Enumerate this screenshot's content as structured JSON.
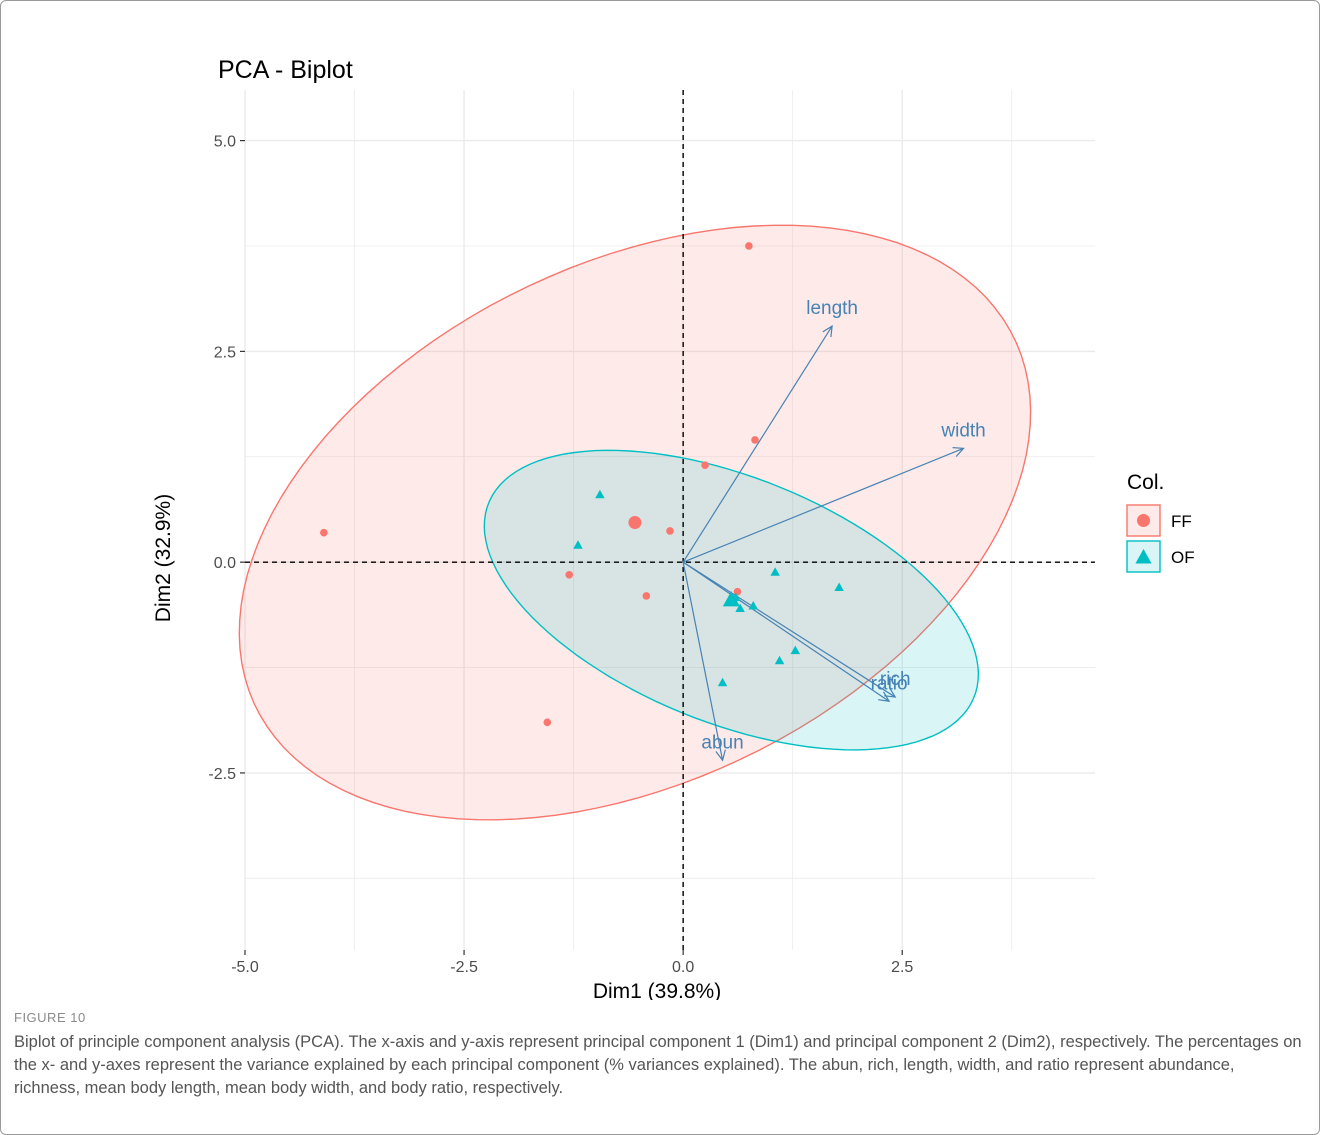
{
  "figure": {
    "label": "FIGURE 10",
    "caption": "Biplot of principle component analysis (PCA). The x-axis and y-axis represent principal component 1 (Dim1) and principal component 2 (Dim2), respectively. The percentages on the x- and y-axes represent the variance explained by each principal component (% variances explained). The abun, rich, length, width, and ratio represent abundance, richness, mean body length, mean body width, and body ratio, respectively."
  },
  "chart_data": {
    "type": "scatter",
    "title": "PCA - Biplot",
    "xlabel": "Dim1 (39.8%)",
    "ylabel": "Dim2 (32.9%)",
    "xlim": [
      -5.0,
      4.7
    ],
    "ylim": [
      -4.6,
      5.6
    ],
    "xticks": [
      -5.0,
      -2.5,
      0.0,
      2.5
    ],
    "xtick_labels": [
      "-5.0",
      "-2.5",
      "0.0",
      "2.5"
    ],
    "yticks": [
      -2.5,
      0.0,
      2.5,
      5.0
    ],
    "ytick_labels": [
      "-2.5",
      "0.0",
      "2.5",
      "5.0"
    ],
    "grid": true,
    "legend": {
      "title": "Col.",
      "position": "right"
    },
    "series": [
      {
        "name": "FF",
        "marker": "circle",
        "color": "#F8766D",
        "points": [
          {
            "x": 0.75,
            "y": 3.75
          },
          {
            "x": 0.82,
            "y": 1.45
          },
          {
            "x": 0.25,
            "y": 1.15
          },
          {
            "x": -4.1,
            "y": 0.35
          },
          {
            "x": -0.15,
            "y": 0.37
          },
          {
            "x": -1.3,
            "y": -0.15
          },
          {
            "x": -0.42,
            "y": -0.4
          },
          {
            "x": 0.62,
            "y": -0.35
          },
          {
            "x": -1.55,
            "y": -1.9
          }
        ],
        "centroid": {
          "x": -0.55,
          "y": 0.47
        },
        "ellipse": {
          "cx": -0.55,
          "cy": 0.47,
          "rx": 4.85,
          "ry": 3.05,
          "angle_deg": 28
        }
      },
      {
        "name": "OF",
        "marker": "triangle",
        "color": "#00BFC4",
        "points": [
          {
            "x": -0.95,
            "y": 0.8
          },
          {
            "x": -1.2,
            "y": 0.2
          },
          {
            "x": 1.05,
            "y": -0.12
          },
          {
            "x": 1.78,
            "y": -0.3
          },
          {
            "x": 0.8,
            "y": -0.52
          },
          {
            "x": 0.65,
            "y": -0.55
          },
          {
            "x": 0.6,
            "y": -0.42
          },
          {
            "x": 1.28,
            "y": -1.05
          },
          {
            "x": 1.1,
            "y": -1.17
          },
          {
            "x": 0.45,
            "y": -1.43
          }
        ],
        "centroid": {
          "x": 0.55,
          "y": -0.45
        },
        "ellipse": {
          "cx": 0.55,
          "cy": -0.45,
          "rx": 3.0,
          "ry": 1.45,
          "angle_deg": -23
        }
      }
    ],
    "loadings": [
      {
        "name": "length",
        "x": 1.7,
        "y": 2.8
      },
      {
        "name": "width",
        "x": 3.2,
        "y": 1.35
      },
      {
        "name": "rich",
        "x": 2.42,
        "y": -1.6
      },
      {
        "name": "ratio",
        "x": 2.35,
        "y": -1.65
      },
      {
        "name": "abun",
        "x": 0.45,
        "y": -2.35
      }
    ],
    "colors": {
      "ff": "#F8766D",
      "of": "#00BFC4",
      "arrow": "#4682B4",
      "grid": "#EBEBEB"
    }
  }
}
